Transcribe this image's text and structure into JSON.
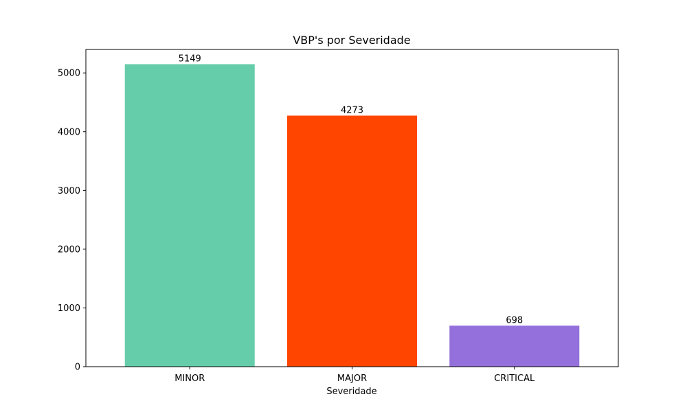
{
  "chart_data": {
    "type": "bar",
    "title": "VBP's por Severidade",
    "xlabel": "Severidade",
    "ylabel": "",
    "categories": [
      "MINOR",
      "MAJOR",
      "CRITICAL"
    ],
    "values": [
      5149,
      4273,
      698
    ],
    "colors": [
      "#66cdaa",
      "#ff4500",
      "#9370db"
    ],
    "ylim": [
      0,
      5400
    ],
    "yticks": [
      0,
      1000,
      2000,
      3000,
      4000,
      5000
    ],
    "grid": false,
    "legend": "none"
  }
}
